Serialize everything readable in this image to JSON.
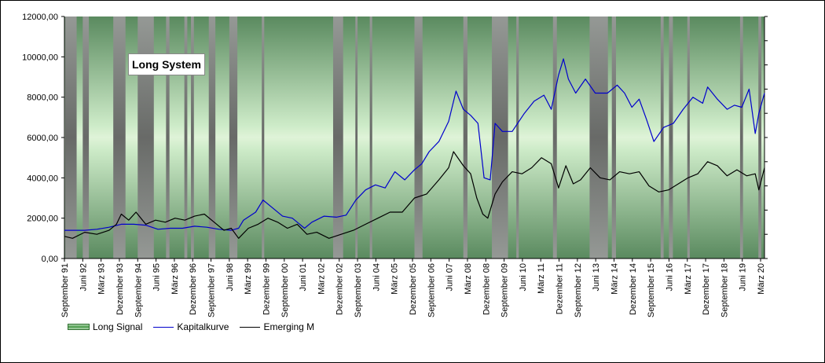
{
  "chart_data": {
    "type": "line",
    "title": "Long System",
    "ylim": [
      0,
      12000
    ],
    "y_ticks": [
      "0,00",
      "2000,00",
      "4000,00",
      "6000,00",
      "8000,00",
      "10000,00",
      "12000,00"
    ],
    "x_range": [
      1991.67,
      2020.33
    ],
    "x_tick_labels": [
      {
        "label": "September 91",
        "x": 1991.67
      },
      {
        "label": "Juni 92",
        "x": 1992.42
      },
      {
        "label": "März 93",
        "x": 1993.17
      },
      {
        "label": "Dezember 93",
        "x": 1993.92
      },
      {
        "label": "September 94",
        "x": 1994.67
      },
      {
        "label": "Juni 95",
        "x": 1995.42
      },
      {
        "label": "März 96",
        "x": 1996.17
      },
      {
        "label": "Dezember 96",
        "x": 1996.92
      },
      {
        "label": "September 97",
        "x": 1997.67
      },
      {
        "label": "Juni 98",
        "x": 1998.42
      },
      {
        "label": "März 99",
        "x": 1999.17
      },
      {
        "label": "Dezember 99",
        "x": 1999.92
      },
      {
        "label": "September 00",
        "x": 2000.67
      },
      {
        "label": "Juni 01",
        "x": 2001.42
      },
      {
        "label": "März 02",
        "x": 2002.17
      },
      {
        "label": "Dezember 02",
        "x": 2002.92
      },
      {
        "label": "September 03",
        "x": 2003.67
      },
      {
        "label": "Juni 04",
        "x": 2004.42
      },
      {
        "label": "März 05",
        "x": 2005.17
      },
      {
        "label": "Dezember 05",
        "x": 2005.92
      },
      {
        "label": "September 06",
        "x": 2006.67
      },
      {
        "label": "Juni 07",
        "x": 2007.42
      },
      {
        "label": "März 08",
        "x": 2008.17
      },
      {
        "label": "Dezember 08",
        "x": 2008.92
      },
      {
        "label": "September 09",
        "x": 2009.67
      },
      {
        "label": "Juni 10",
        "x": 2010.42
      },
      {
        "label": "März 11",
        "x": 2011.17
      },
      {
        "label": "Dezember 11",
        "x": 2011.92
      },
      {
        "label": "September 12",
        "x": 2012.67
      },
      {
        "label": "Juni 13",
        "x": 2013.42
      },
      {
        "label": "März 14",
        "x": 2014.17
      },
      {
        "label": "Dezember 14",
        "x": 2014.92
      },
      {
        "label": "September 15",
        "x": 2015.67
      },
      {
        "label": "Juni 16",
        "x": 2016.42
      },
      {
        "label": "März 17",
        "x": 2017.17
      },
      {
        "label": "Dezember 17",
        "x": 2017.92
      },
      {
        "label": "September 18",
        "x": 2018.67
      },
      {
        "label": "Juni 19",
        "x": 2019.42
      },
      {
        "label": "März 20",
        "x": 2020.17
      }
    ],
    "gray_periods": [
      [
        1991.7,
        1992.17
      ],
      [
        1992.42,
        1992.67
      ],
      [
        1993.67,
        1994.17
      ],
      [
        1994.67,
        1995.33
      ],
      [
        1995.83,
        1995.97
      ],
      [
        1996.58,
        1996.7
      ],
      [
        1996.85,
        1996.97
      ],
      [
        1997.58,
        1997.85
      ],
      [
        1998.42,
        1998.75
      ],
      [
        1999.75,
        1999.85
      ],
      [
        2002.67,
        2003.08
      ],
      [
        2003.58,
        2003.67
      ],
      [
        2004.17,
        2004.27
      ],
      [
        2006.0,
        2006.33
      ],
      [
        2008.0,
        2008.17
      ],
      [
        2009.17,
        2009.83
      ],
      [
        2010.17,
        2010.27
      ],
      [
        2011.67,
        2011.83
      ],
      [
        2013.17,
        2013.92
      ],
      [
        2014.08,
        2014.25
      ],
      [
        2016.08,
        2016.2
      ],
      [
        2016.42,
        2016.58
      ],
      [
        2017.17,
        2017.27
      ],
      [
        2019.33,
        2019.45
      ],
      [
        2020.08,
        2020.2
      ]
    ],
    "series": [
      {
        "name": "Kapitalkurve",
        "color": "#0000cc",
        "points": [
          [
            1991.67,
            1400
          ],
          [
            1992.5,
            1400
          ],
          [
            1993.0,
            1450
          ],
          [
            1993.5,
            1550
          ],
          [
            1994.0,
            1700
          ],
          [
            1994.5,
            1700
          ],
          [
            1995.0,
            1650
          ],
          [
            1995.5,
            1450
          ],
          [
            1996.0,
            1500
          ],
          [
            1996.5,
            1500
          ],
          [
            1997.0,
            1600
          ],
          [
            1997.5,
            1550
          ],
          [
            1998.0,
            1450
          ],
          [
            1998.5,
            1400
          ],
          [
            1998.8,
            1500
          ],
          [
            1999.0,
            1900
          ],
          [
            1999.5,
            2300
          ],
          [
            1999.8,
            2900
          ],
          [
            2000.2,
            2500
          ],
          [
            2000.6,
            2100
          ],
          [
            2001.0,
            2000
          ],
          [
            2001.5,
            1500
          ],
          [
            2001.8,
            1800
          ],
          [
            2002.3,
            2100
          ],
          [
            2002.8,
            2050
          ],
          [
            2003.2,
            2150
          ],
          [
            2003.6,
            2900
          ],
          [
            2004.0,
            3400
          ],
          [
            2004.4,
            3650
          ],
          [
            2004.8,
            3500
          ],
          [
            2005.2,
            4300
          ],
          [
            2005.6,
            3900
          ],
          [
            2006.0,
            4400
          ],
          [
            2006.3,
            4700
          ],
          [
            2006.6,
            5300
          ],
          [
            2007.0,
            5800
          ],
          [
            2007.4,
            6800
          ],
          [
            2007.7,
            8300
          ],
          [
            2008.0,
            7400
          ],
          [
            2008.3,
            7100
          ],
          [
            2008.6,
            6700
          ],
          [
            2008.85,
            4000
          ],
          [
            2009.1,
            3900
          ],
          [
            2009.3,
            6700
          ],
          [
            2009.6,
            6300
          ],
          [
            2010.0,
            6300
          ],
          [
            2010.5,
            7200
          ],
          [
            2010.9,
            7800
          ],
          [
            2011.3,
            8100
          ],
          [
            2011.6,
            7400
          ],
          [
            2011.9,
            9100
          ],
          [
            2012.1,
            9900
          ],
          [
            2012.3,
            8900
          ],
          [
            2012.6,
            8200
          ],
          [
            2013.0,
            8900
          ],
          [
            2013.4,
            8200
          ],
          [
            2013.9,
            8200
          ],
          [
            2014.3,
            8600
          ],
          [
            2014.6,
            8200
          ],
          [
            2014.9,
            7500
          ],
          [
            2015.2,
            7900
          ],
          [
            2015.5,
            6900
          ],
          [
            2015.8,
            5800
          ],
          [
            2016.2,
            6500
          ],
          [
            2016.6,
            6700
          ],
          [
            2017.0,
            7400
          ],
          [
            2017.4,
            8000
          ],
          [
            2017.8,
            7700
          ],
          [
            2018.0,
            8500
          ],
          [
            2018.4,
            7900
          ],
          [
            2018.8,
            7400
          ],
          [
            2019.1,
            7600
          ],
          [
            2019.4,
            7500
          ],
          [
            2019.7,
            8400
          ],
          [
            2019.95,
            6200
          ],
          [
            2020.1,
            7200
          ],
          [
            2020.33,
            8200
          ]
        ]
      },
      {
        "name": "Emerging M",
        "color": "#000000",
        "points": [
          [
            1991.67,
            1100
          ],
          [
            1992.0,
            1000
          ],
          [
            1992.5,
            1300
          ],
          [
            1993.0,
            1200
          ],
          [
            1993.5,
            1400
          ],
          [
            1993.8,
            1700
          ],
          [
            1994.0,
            2200
          ],
          [
            1994.3,
            1900
          ],
          [
            1994.6,
            2300
          ],
          [
            1995.0,
            1700
          ],
          [
            1995.4,
            1900
          ],
          [
            1995.8,
            1800
          ],
          [
            1996.2,
            2000
          ],
          [
            1996.6,
            1900
          ],
          [
            1997.0,
            2100
          ],
          [
            1997.4,
            2200
          ],
          [
            1997.8,
            1800
          ],
          [
            1998.2,
            1400
          ],
          [
            1998.5,
            1500
          ],
          [
            1998.8,
            1000
          ],
          [
            1999.2,
            1500
          ],
          [
            1999.6,
            1700
          ],
          [
            2000.0,
            2000
          ],
          [
            2000.4,
            1800
          ],
          [
            2000.8,
            1500
          ],
          [
            2001.2,
            1700
          ],
          [
            2001.6,
            1200
          ],
          [
            2002.0,
            1300
          ],
          [
            2002.5,
            1000
          ],
          [
            2003.0,
            1200
          ],
          [
            2003.5,
            1400
          ],
          [
            2004.0,
            1700
          ],
          [
            2004.5,
            2000
          ],
          [
            2005.0,
            2300
          ],
          [
            2005.5,
            2300
          ],
          [
            2006.0,
            3000
          ],
          [
            2006.5,
            3200
          ],
          [
            2007.0,
            3900
          ],
          [
            2007.4,
            4500
          ],
          [
            2007.6,
            5300
          ],
          [
            2008.0,
            4600
          ],
          [
            2008.3,
            4200
          ],
          [
            2008.55,
            3000
          ],
          [
            2008.8,
            2200
          ],
          [
            2009.0,
            2000
          ],
          [
            2009.3,
            3200
          ],
          [
            2009.6,
            3800
          ],
          [
            2010.0,
            4300
          ],
          [
            2010.4,
            4200
          ],
          [
            2010.8,
            4500
          ],
          [
            2011.2,
            5000
          ],
          [
            2011.6,
            4700
          ],
          [
            2011.9,
            3500
          ],
          [
            2012.2,
            4600
          ],
          [
            2012.5,
            3700
          ],
          [
            2012.8,
            3900
          ],
          [
            2013.2,
            4500
          ],
          [
            2013.6,
            4000
          ],
          [
            2014.0,
            3900
          ],
          [
            2014.4,
            4300
          ],
          [
            2014.8,
            4200
          ],
          [
            2015.2,
            4300
          ],
          [
            2015.6,
            3600
          ],
          [
            2016.0,
            3300
          ],
          [
            2016.4,
            3400
          ],
          [
            2016.8,
            3700
          ],
          [
            2017.2,
            4000
          ],
          [
            2017.6,
            4200
          ],
          [
            2018.0,
            4800
          ],
          [
            2018.4,
            4600
          ],
          [
            2018.8,
            4100
          ],
          [
            2019.2,
            4400
          ],
          [
            2019.6,
            4100
          ],
          [
            2019.95,
            4200
          ],
          [
            2020.1,
            3400
          ],
          [
            2020.33,
            4500
          ]
        ]
      }
    ],
    "legend": [
      "Long Signal",
      "Kapitalkurve",
      "Emerging M"
    ]
  }
}
